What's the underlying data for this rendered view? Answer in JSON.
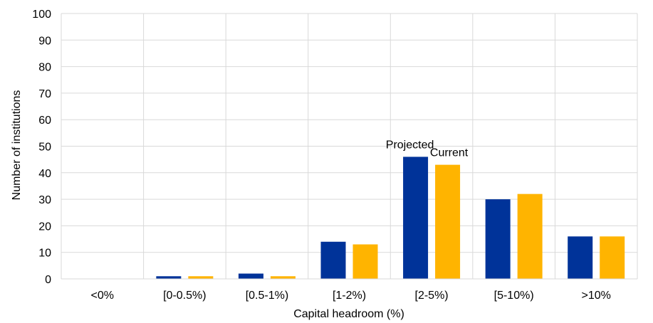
{
  "chart_data": {
    "type": "bar",
    "categories": [
      "<0%",
      "[0-0.5%)",
      "[0.5-1%)",
      "[1-2%)",
      "[2-5%)",
      "[5-10%)",
      ">10%"
    ],
    "series": [
      {
        "values": [
          0,
          1,
          2,
          14,
          46,
          30,
          16
        ],
        "color": "#003399"
      },
      {
        "values": [
          0,
          1,
          1,
          13,
          43,
          32,
          16
        ],
        "color": "#FFB400"
      }
    ],
    "title": "",
    "xlabel": "Capital headroom (%)",
    "ylabel": "Number of institutions",
    "ylim": [
      0,
      100
    ],
    "yticks": [
      0,
      10,
      20,
      30,
      40,
      50,
      60,
      70,
      80,
      90,
      100
    ],
    "grid": true,
    "legend": "none",
    "annotations": [
      {
        "text": "Projected",
        "category": "[2-5%)",
        "series_index": 0
      },
      {
        "text": "Current",
        "category": "[2-5%)",
        "series_index": 1
      }
    ]
  }
}
